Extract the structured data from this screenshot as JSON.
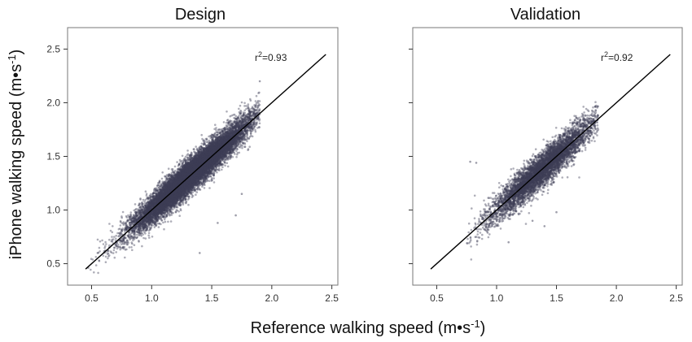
{
  "chart_data": [
    {
      "type": "scatter",
      "title": "Design",
      "annotation": {
        "prefix": "r",
        "sup": "2",
        "value": "=0.93"
      },
      "xlim": [
        0.3,
        2.55
      ],
      "ylim": [
        0.3,
        2.7
      ],
      "x_ticks": [
        "0.5",
        "1.0",
        "1.5",
        "2.0",
        "2.5"
      ],
      "y_ticks": [
        "0.5",
        "1.0",
        "1.5",
        "2.0",
        "2.5"
      ],
      "y_tick_labels_visible": true,
      "fit_line": {
        "x": [
          0.45,
          2.45
        ],
        "y": [
          0.45,
          2.45
        ]
      },
      "point_color": "#3d3d55",
      "point_cloud": {
        "n": 14000,
        "x_mean": 1.33,
        "x_sd": 0.24,
        "slope": 1.0,
        "intercept": 0.0,
        "residual_sd": 0.075,
        "x_min": 0.45,
        "x_max": 1.9
      },
      "outliers": [
        [
          1.55,
          0.88
        ],
        [
          1.4,
          0.6
        ],
        [
          1.7,
          0.95
        ],
        [
          0.55,
          0.6
        ],
        [
          1.9,
          2.2
        ],
        [
          1.75,
          1.15
        ]
      ]
    },
    {
      "type": "scatter",
      "title": "Validation",
      "annotation": {
        "prefix": "r",
        "sup": "2",
        "value": "=0.92"
      },
      "xlim": [
        0.3,
        2.55
      ],
      "ylim": [
        0.3,
        2.7
      ],
      "x_ticks": [
        "0.5",
        "1.0",
        "1.5",
        "2.0",
        "2.5"
      ],
      "y_ticks": [
        "0.5",
        "1.0",
        "1.5",
        "2.0",
        "2.5"
      ],
      "y_tick_labels_visible": false,
      "fit_line": {
        "x": [
          0.45,
          2.45
        ],
        "y": [
          0.45,
          2.45
        ]
      },
      "point_color": "#3d3d55",
      "point_cloud": {
        "n": 5500,
        "x_mean": 1.38,
        "x_sd": 0.22,
        "slope": 1.0,
        "intercept": 0.0,
        "residual_sd": 0.08,
        "x_min": 0.75,
        "x_max": 1.85
      },
      "outliers": [
        [
          0.78,
          1.45
        ],
        [
          0.83,
          1.44
        ],
        [
          1.5,
          0.98
        ],
        [
          1.3,
          0.9
        ],
        [
          1.4,
          0.85
        ],
        [
          1.1,
          0.7
        ]
      ]
    }
  ],
  "axes": {
    "xlabel": {
      "main": "Reference walking speed (m•s",
      "sup": "-1",
      "end": ")"
    },
    "ylabel": {
      "main": "iPhone walking speed (m•s",
      "sup": "-1",
      "end": ")"
    }
  }
}
